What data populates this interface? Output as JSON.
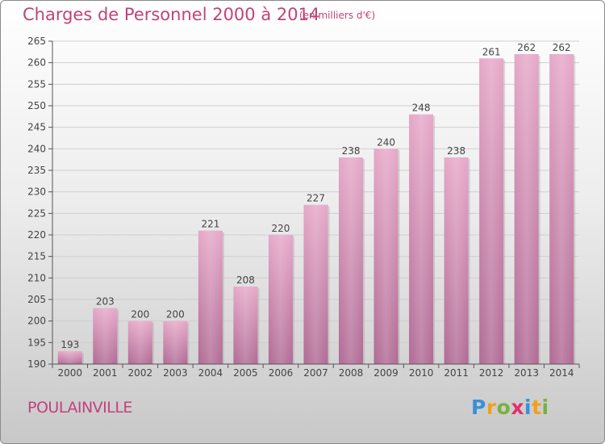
{
  "header": {
    "title": "Charges de Personnel 2000 à 2014",
    "subtitle": "(en milliers d'€)"
  },
  "footer": {
    "commune": "POULAINVILLE",
    "logo_letters": [
      "P",
      "r",
      "o",
      "x",
      "i",
      "t",
      "i"
    ],
    "logo_colors": [
      "#3a8fd8",
      "#f0a020",
      "#7ab040",
      "#e03070",
      "#3a8fd8",
      "#f0a020",
      "#7ab040"
    ]
  },
  "chart_data": {
    "type": "bar",
    "title": "Charges de Personnel 2000 à 2014",
    "subtitle": "(en milliers d'€)",
    "categories": [
      "2000",
      "2001",
      "2002",
      "2003",
      "2004",
      "2005",
      "2006",
      "2007",
      "2008",
      "2009",
      "2010",
      "2011",
      "2012",
      "2013",
      "2014"
    ],
    "values": [
      193,
      203,
      200,
      200,
      221,
      208,
      220,
      227,
      238,
      240,
      248,
      238,
      261,
      262,
      262
    ],
    "ylim": [
      190,
      265
    ],
    "yticks": [
      190,
      195,
      200,
      205,
      210,
      215,
      220,
      225,
      230,
      235,
      240,
      245,
      250,
      255,
      260,
      265
    ],
    "grid": true,
    "bar_color": "#d98bb4",
    "label_color": "#444444",
    "axis_color": "#555555"
  }
}
